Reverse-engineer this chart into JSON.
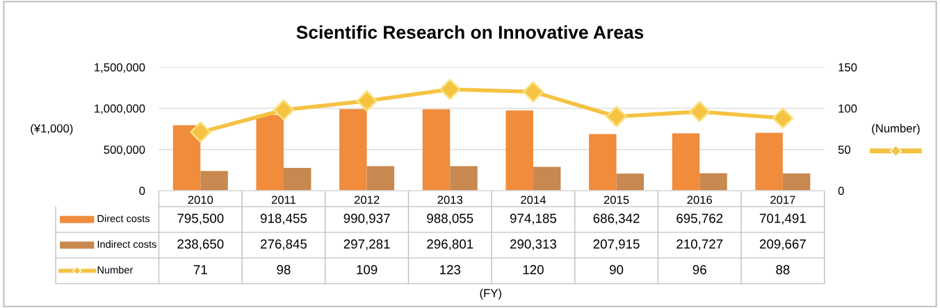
{
  "chart_data": {
    "type": "bar",
    "title": "Scientific Research on Innovative Areas",
    "annotations": [
      "(FY)"
    ],
    "ylabel": "(¥1,000)",
    "y2label": "(Number)",
    "categories": [
      "2010",
      "2011",
      "2012",
      "2013",
      "2014",
      "2015",
      "2016",
      "2017"
    ],
    "series": [
      {
        "name": "Direct costs",
        "color": "#f08c3c",
        "values": [
          795500,
          918455,
          990937,
          988055,
          974185,
          686342,
          695762,
          701491
        ],
        "value_labels": [
          "795,500",
          "918,455",
          "990,937",
          "988,055",
          "974,185",
          "686,342",
          "695,762",
          "701,491"
        ]
      },
      {
        "name": "Indirect costs",
        "color": "#c8884f",
        "values": [
          238650,
          276845,
          297281,
          296801,
          290313,
          207915,
          210727,
          209667
        ],
        "value_labels": [
          "238,650",
          "276,845",
          "297,281",
          "296,801",
          "290,313",
          "207,915",
          "210,727",
          "209,667"
        ]
      },
      {
        "name": "Number",
        "type": "line",
        "axis": "y2",
        "color": "#f5c242",
        "marker": "diamond",
        "values": [
          71,
          98,
          109,
          123,
          120,
          90,
          96,
          88
        ],
        "value_labels": [
          "71",
          "98",
          "109",
          "123",
          "120",
          "90",
          "96",
          "88"
        ]
      }
    ],
    "ylim": [
      0,
      1500000
    ],
    "yticks": [
      {
        "value": 0,
        "label": "0"
      },
      {
        "value": 500000,
        "label": "500,000"
      },
      {
        "value": 1000000,
        "label": "1,000,000"
      },
      {
        "value": 1500000,
        "label": "1,500,000"
      }
    ],
    "y2lim": [
      0,
      150
    ],
    "y2ticks": [
      0,
      50,
      100,
      150
    ],
    "grid": "y",
    "legend": "bottom left"
  }
}
